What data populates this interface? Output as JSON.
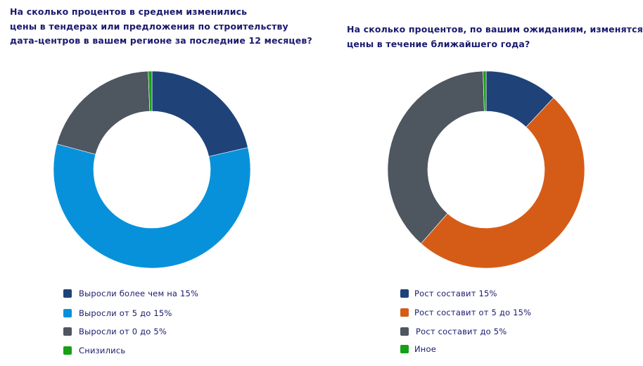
{
  "chart_data": [
    {
      "type": "pie",
      "donut": true,
      "title_lines": [
        "На сколько процентов в среднем изменились",
        "цены в тендерах или предложения по строительству",
        "дата-центров в вашем регионе за последние 12 месяцев?"
      ],
      "categories": [
        "Выросли более чем на 15%",
        "Выросли от 5 до 15%",
        "Выросли от 0 до 5%",
        "Снизились"
      ],
      "values": [
        21.4,
        57.8,
        20.2,
        0.6
      ],
      "colors": [
        "#1f4279",
        "#0891db",
        "#4e5660",
        "#16a016"
      ],
      "legend_position": "bottom-left"
    },
    {
      "type": "pie",
      "donut": true,
      "title_lines": [
        "На сколько процентов, по вашим ожиданиям,  изменятся",
        "цены в течение ближайшего года?"
      ],
      "categories": [
        "Рост составит 15%",
        "Рост составит от 5 до 15%",
        "Рост составит до 5%",
        "Иное"
      ],
      "values": [
        12.0,
        49.5,
        38.0,
        0.5
      ],
      "colors": [
        "#1f4279",
        "#d55c17",
        "#4e5660",
        "#16a016"
      ],
      "legend_position": "bottom-left"
    }
  ]
}
